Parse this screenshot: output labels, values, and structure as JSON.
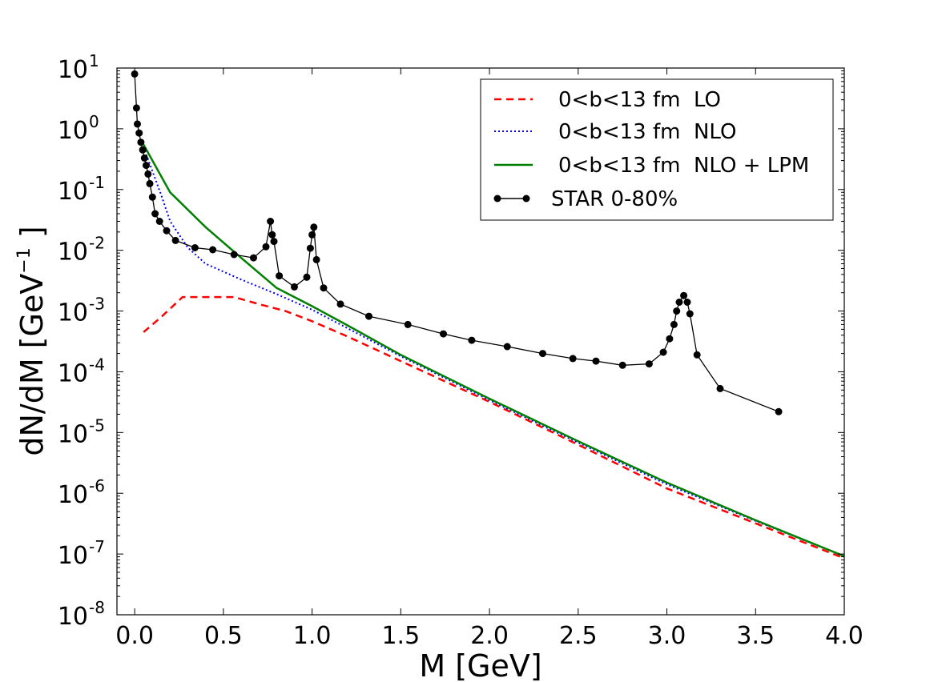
{
  "chart_data": {
    "type": "line",
    "xlabel": "M [GeV]",
    "ylabel": "dN/dM [GeV",
    "ylabel_sup": "−1",
    "ylabel_close": " ]",
    "xlim": [
      -0.1,
      4.0
    ],
    "ylim_log10": [
      -8,
      1
    ],
    "xticks": [
      {
        "value": 0.0,
        "label": "0.0"
      },
      {
        "value": 0.5,
        "label": "0.5"
      },
      {
        "value": 1.0,
        "label": "1.0"
      },
      {
        "value": 1.5,
        "label": "1.5"
      },
      {
        "value": 2.0,
        "label": "2.0"
      },
      {
        "value": 2.5,
        "label": "2.5"
      },
      {
        "value": 3.0,
        "label": "3.0"
      },
      {
        "value": 3.5,
        "label": "3.5"
      },
      {
        "value": 4.0,
        "label": "4.0"
      }
    ],
    "yticks": [
      {
        "exp": 1,
        "label": "1"
      },
      {
        "exp": 0,
        "label": "0"
      },
      {
        "exp": -1,
        "label": "-1"
      },
      {
        "exp": -2,
        "label": "-2"
      },
      {
        "exp": -3,
        "label": "-3"
      },
      {
        "exp": -4,
        "label": "-4"
      },
      {
        "exp": -5,
        "label": "-5"
      },
      {
        "exp": -6,
        "label": "-6"
      },
      {
        "exp": -7,
        "label": "-7"
      },
      {
        "exp": -8,
        "label": "-8"
      }
    ],
    "ytick_base": "10",
    "legend_position": "top-right",
    "series": [
      {
        "name": "0<b<13 fm  LO",
        "style": "dashed",
        "color": "#ff0000",
        "x": [
          0.05,
          0.15,
          0.27,
          0.56,
          0.7,
          0.85,
          1.0,
          1.2,
          1.5,
          2.0,
          2.5,
          3.0,
          3.5,
          4.0
        ],
        "y": [
          0.00045,
          0.0008,
          0.0017,
          0.0017,
          0.0013,
          0.001,
          0.00068,
          0.00038,
          0.00015,
          3.2e-05,
          6.3e-06,
          1.2e-06,
          3.2e-07,
          8.5e-08
        ]
      },
      {
        "name": "0<b<13 fm  NLO",
        "style": "dotted",
        "color": "#0000ff",
        "x": [
          0.05,
          0.1,
          0.15,
          0.2,
          0.3,
          0.4,
          0.6,
          0.8,
          1.0,
          1.2,
          1.5,
          2.0,
          2.5,
          3.0,
          3.5,
          4.0
        ],
        "y": [
          0.5,
          0.2,
          0.08,
          0.03,
          0.011,
          0.006,
          0.0033,
          0.0019,
          0.00105,
          0.00052,
          0.00018,
          3.4e-05,
          6.8e-06,
          1.4e-06,
          3.5e-07,
          9.2e-08
        ]
      },
      {
        "name": "0<b<13 fm  NLO + LPM",
        "style": "solid",
        "color": "#008000",
        "x": [
          0.05,
          0.2,
          0.4,
          0.6,
          0.8,
          0.9,
          1.0,
          1.2,
          1.5,
          2.0,
          2.5,
          3.0,
          3.5,
          4.0
        ],
        "y": [
          0.55,
          0.09,
          0.024,
          0.0075,
          0.0024,
          0.0017,
          0.0012,
          0.00058,
          0.00019,
          3.6e-05,
          7.2e-06,
          1.5e-06,
          3.6e-07,
          9.2e-08
        ]
      },
      {
        "name": "STAR 0-80%",
        "style": "markers",
        "color": "#000000",
        "x": [
          0.0,
          0.01,
          0.015,
          0.025,
          0.035,
          0.045,
          0.055,
          0.065,
          0.075,
          0.085,
          0.1,
          0.115,
          0.14,
          0.18,
          0.23,
          0.34,
          0.44,
          0.56,
          0.67,
          0.74,
          0.765,
          0.775,
          0.785,
          0.815,
          0.9,
          0.97,
          0.99,
          1.0,
          1.01,
          1.025,
          1.065,
          1.16,
          1.32,
          1.54,
          1.74,
          1.9,
          2.1,
          2.3,
          2.47,
          2.6,
          2.75,
          2.9,
          2.98,
          3.015,
          3.04,
          3.055,
          3.07,
          3.095,
          3.115,
          3.13,
          3.17,
          3.3,
          3.63
        ],
        "y": [
          8.0,
          2.2,
          1.2,
          0.85,
          0.6,
          0.45,
          0.33,
          0.25,
          0.18,
          0.125,
          0.075,
          0.04,
          0.03,
          0.021,
          0.0145,
          0.011,
          0.0102,
          0.0085,
          0.0075,
          0.0114,
          0.03,
          0.018,
          0.014,
          0.0038,
          0.0025,
          0.0036,
          0.0108,
          0.018,
          0.024,
          0.007,
          0.0024,
          0.0013,
          0.00082,
          0.0006,
          0.00042,
          0.00033,
          0.00026,
          0.0002,
          0.000165,
          0.00015,
          0.000128,
          0.000135,
          0.00021,
          0.00035,
          0.0006,
          0.001,
          0.0014,
          0.0018,
          0.0014,
          0.0009,
          0.00019,
          5.3e-05,
          2.2e-05
        ]
      }
    ]
  }
}
